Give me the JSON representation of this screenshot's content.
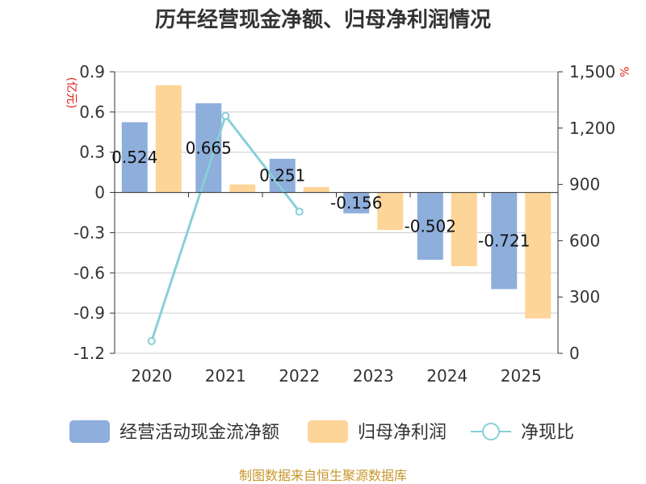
{
  "chart_data": {
    "type": "bar",
    "title": "历年经营现金净额、归母净利润情况",
    "categories": [
      "2020",
      "2021",
      "2022",
      "2023",
      "2024",
      "2025"
    ],
    "y_left": {
      "unit": "(亿元)",
      "min": -1.2,
      "max": 0.9,
      "ticks": [
        "0.9",
        "0.6",
        "0.3",
        "0",
        "-0.3",
        "-0.6",
        "-0.9",
        "-1.2"
      ]
    },
    "y_right": {
      "unit": "%",
      "min": 0,
      "max": 1500,
      "ticks": [
        "1,500",
        "1,200",
        "900",
        "600",
        "300",
        "0"
      ]
    },
    "series": [
      {
        "name": "经营活动现金流净额",
        "type": "bar",
        "axis": "left",
        "color": "#8eaedc",
        "values": [
          0.524,
          0.665,
          0.251,
          -0.156,
          -0.502,
          -0.721
        ],
        "labels": [
          "0.524",
          "0.665",
          "0.251",
          "-0.156",
          "-0.502",
          "-0.721"
        ]
      },
      {
        "name": "归母净利润",
        "type": "bar",
        "axis": "left",
        "color": "#fdd598",
        "values": [
          0.8,
          0.06,
          0.04,
          -0.28,
          -0.55,
          -0.94
        ]
      },
      {
        "name": "净现比",
        "type": "line",
        "axis": "right",
        "color": "#87d0d8",
        "values": [
          65,
          1265,
          755,
          null,
          null,
          null
        ]
      }
    ],
    "source": "制图数据来自恒生聚源数据库"
  }
}
